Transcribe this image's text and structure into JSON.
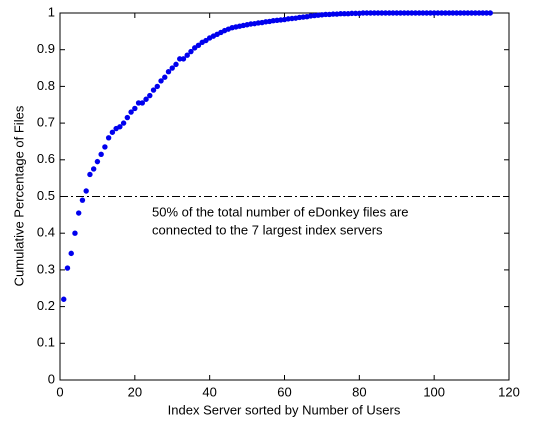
{
  "chart_data": {
    "type": "scatter",
    "xlabel": "Index Server sorted by Number of Users",
    "ylabel": "Cumulative Percentage of Files",
    "annotation": [
      "50% of the total number of eDonkey files are",
      "connected to the 7 largest index servers"
    ],
    "reference_line": {
      "y": 0.5,
      "style": "dash-dot",
      "color": "#000000"
    },
    "color": "#0000ee",
    "x": [
      1,
      2,
      3,
      4,
      5,
      6,
      7,
      8,
      9,
      10,
      11,
      12,
      13,
      14,
      15,
      16,
      17,
      18,
      19,
      20,
      21,
      22,
      23,
      24,
      25,
      26,
      27,
      28,
      29,
      30,
      31,
      32,
      33,
      34,
      35,
      36,
      37,
      38,
      39,
      40,
      41,
      42,
      43,
      44,
      45,
      46,
      47,
      48,
      49,
      50,
      51,
      52,
      53,
      54,
      55,
      56,
      57,
      58,
      59,
      60,
      61,
      62,
      63,
      64,
      65,
      66,
      67,
      68,
      69,
      70,
      71,
      72,
      73,
      74,
      75,
      76,
      77,
      78,
      79,
      80,
      81,
      82,
      83,
      84,
      85,
      86,
      87,
      88,
      89,
      90,
      91,
      92,
      93,
      94,
      95,
      96,
      97,
      98,
      99,
      100,
      101,
      102,
      103,
      104,
      105,
      106,
      107,
      108,
      109,
      110,
      111,
      112,
      113,
      114,
      115
    ],
    "values": [
      0.22,
      0.305,
      0.345,
      0.4,
      0.455,
      0.49,
      0.515,
      0.56,
      0.575,
      0.595,
      0.615,
      0.635,
      0.66,
      0.675,
      0.685,
      0.69,
      0.7,
      0.715,
      0.73,
      0.74,
      0.755,
      0.755,
      0.765,
      0.775,
      0.79,
      0.8,
      0.815,
      0.825,
      0.84,
      0.85,
      0.86,
      0.875,
      0.875,
      0.885,
      0.895,
      0.905,
      0.912,
      0.92,
      0.925,
      0.932,
      0.937,
      0.942,
      0.947,
      0.952,
      0.956,
      0.96,
      0.962,
      0.964,
      0.966,
      0.968,
      0.97,
      0.971,
      0.973,
      0.974,
      0.976,
      0.977,
      0.979,
      0.98,
      0.981,
      0.982,
      0.984,
      0.985,
      0.986,
      0.988,
      0.989,
      0.99,
      0.992,
      0.993,
      0.994,
      0.995,
      0.996,
      0.996,
      0.997,
      0.997,
      0.998,
      0.998,
      0.998,
      0.999,
      0.999,
      0.999,
      1,
      1,
      1,
      1,
      1,
      1,
      1,
      1,
      1,
      1,
      1,
      1,
      1,
      1,
      1,
      1,
      1,
      1,
      1,
      1,
      1,
      1,
      1,
      1,
      1,
      1,
      1,
      1,
      1,
      1,
      1,
      1,
      1,
      1,
      1
    ],
    "xlim": [
      0,
      120
    ],
    "xticks": [
      0,
      20,
      40,
      60,
      80,
      100,
      120
    ],
    "ylim": [
      0,
      1
    ],
    "yticks": [
      0,
      0.1,
      0.2,
      0.3,
      0.4,
      0.5,
      0.6,
      0.7,
      0.8,
      0.9,
      1
    ],
    "grid": false
  }
}
